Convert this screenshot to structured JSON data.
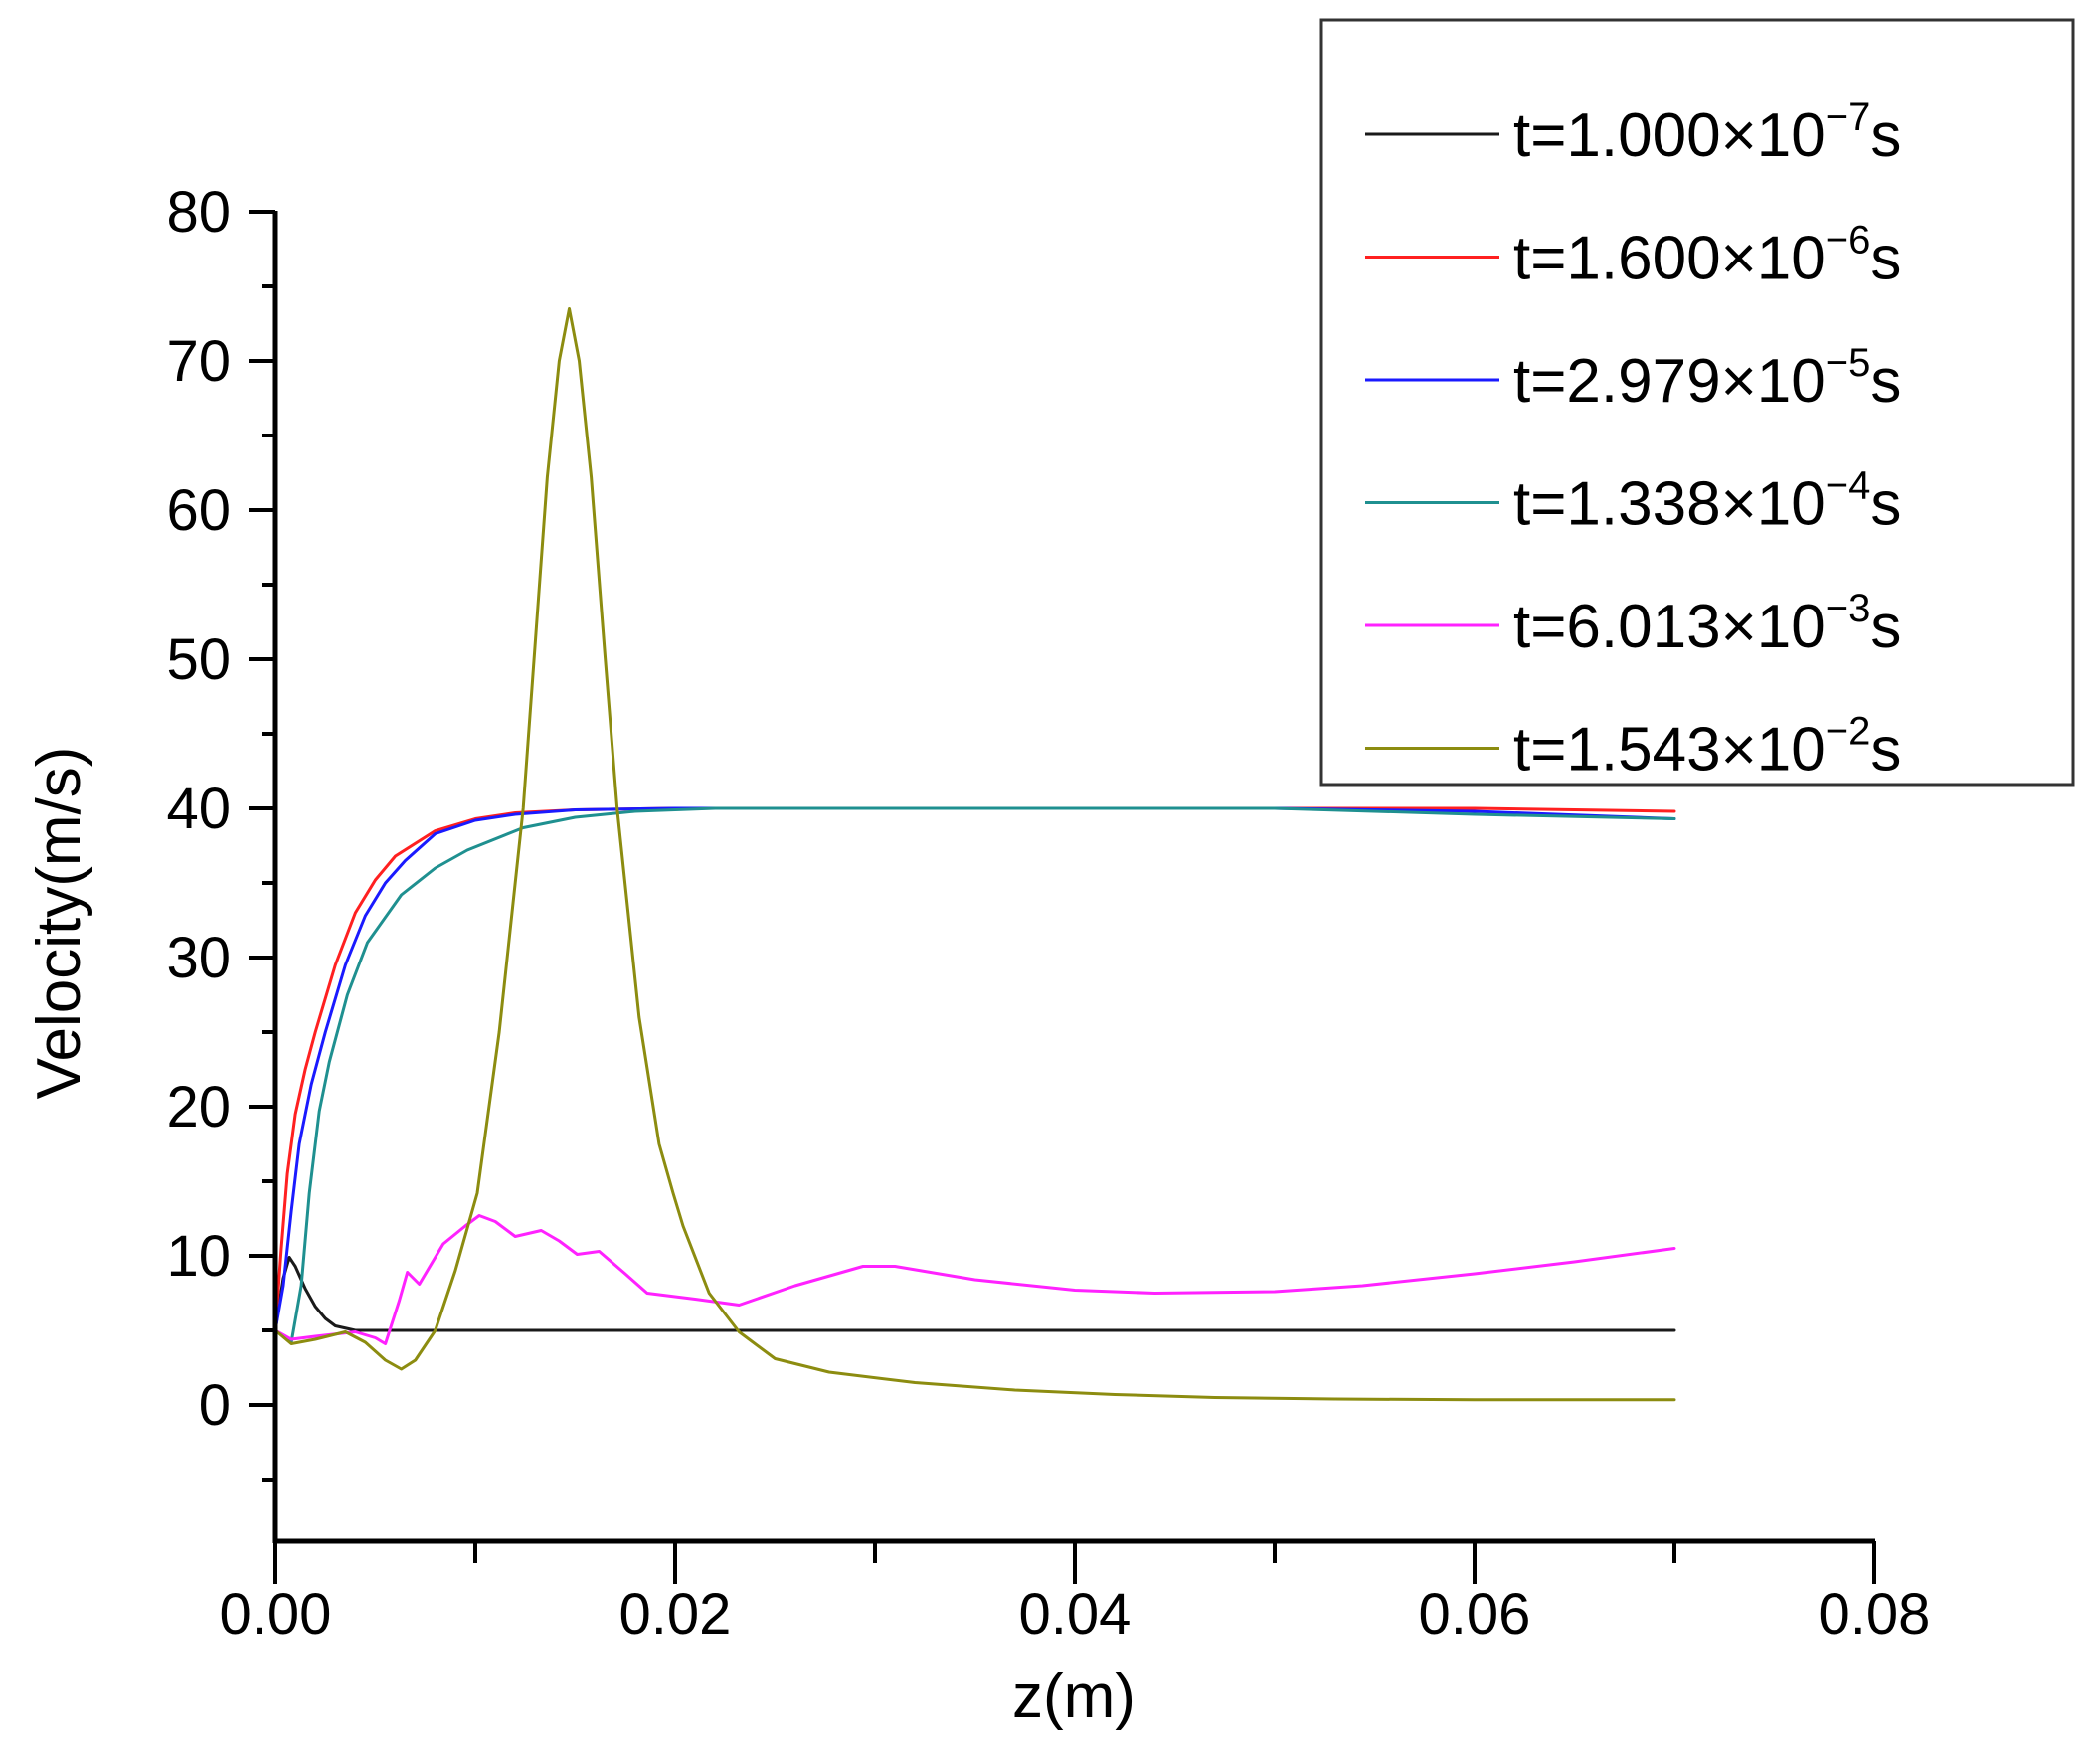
{
  "chart_data": {
    "type": "line",
    "title": "",
    "xlabel": "z(m)",
    "ylabel": "Velocity(m/s)",
    "xlim": [
      0,
      0.08
    ],
    "ylim": [
      -9,
      80
    ],
    "x_ticks": [
      0.0,
      0.02,
      0.04,
      0.06,
      0.08
    ],
    "x_tick_labels": [
      "0.00",
      "0.02",
      "0.04",
      "0.06",
      "0.08"
    ],
    "x_minor_ticks": [
      0.01,
      0.03,
      0.05,
      0.07
    ],
    "y_ticks": [
      0,
      10,
      20,
      30,
      40,
      50,
      60,
      70,
      80
    ],
    "y_tick_labels": [
      "0",
      "10",
      "20",
      "30",
      "40",
      "50",
      "60",
      "70",
      "80"
    ],
    "y_minor_ticks": [
      -5,
      5,
      15,
      25,
      35,
      45,
      55,
      65,
      75
    ],
    "grid": false,
    "legend_position": "upper right (outside plot area, top)",
    "series": [
      {
        "name": "t=1.000×10⁻⁷s",
        "label_main": "t=1.000×10",
        "label_exp": "−7",
        "label_unit": "s",
        "color": "#1a1a1a",
        "x": [
          0.0,
          0.0004,
          0.0007,
          0.001,
          0.0015,
          0.002,
          0.0025,
          0.003,
          0.004,
          0.006,
          0.01,
          0.02,
          0.03,
          0.04,
          0.05,
          0.06,
          0.07
        ],
        "y": [
          5.0,
          8.5,
          9.9,
          9.3,
          7.8,
          6.6,
          5.8,
          5.3,
          5.0,
          5.0,
          5.0,
          5.0,
          5.0,
          5.0,
          5.0,
          5.0,
          5.0
        ]
      },
      {
        "name": "t=1.600×10⁻⁶s",
        "label_main": "t=1.600×10",
        "label_exp": "−6",
        "label_unit": "s",
        "color": "#ff2020",
        "x": [
          0.0,
          0.0003,
          0.0006,
          0.001,
          0.0015,
          0.002,
          0.003,
          0.004,
          0.005,
          0.006,
          0.008,
          0.01,
          0.012,
          0.015,
          0.02,
          0.03,
          0.04,
          0.05,
          0.06,
          0.07
        ],
        "y": [
          5.0,
          10.5,
          15.5,
          19.5,
          22.5,
          25.0,
          29.5,
          33.0,
          35.2,
          36.8,
          38.5,
          39.3,
          39.7,
          39.9,
          40.0,
          40.0,
          40.0,
          40.0,
          40.0,
          39.8
        ]
      },
      {
        "name": "t=2.979×10⁻⁵s",
        "label_main": "t=2.979×10",
        "label_exp": "−5",
        "label_unit": "s",
        "color": "#1a1aff",
        "x": [
          0.0,
          0.0004,
          0.0008,
          0.0012,
          0.0018,
          0.0025,
          0.0035,
          0.0045,
          0.0055,
          0.0065,
          0.008,
          0.01,
          0.012,
          0.015,
          0.02,
          0.03,
          0.04,
          0.05,
          0.06,
          0.07
        ],
        "y": [
          5.0,
          8.0,
          13.0,
          17.5,
          21.5,
          25.0,
          29.5,
          32.8,
          35.0,
          36.5,
          38.3,
          39.2,
          39.6,
          39.9,
          40.0,
          40.0,
          40.0,
          40.0,
          39.8,
          39.3
        ]
      },
      {
        "name": "t=1.338×10⁻⁴s",
        "label_main": "t=1.338×10",
        "label_exp": "−4",
        "label_unit": "s",
        "color": "#1f9090",
        "x": [
          0.0,
          0.0008,
          0.0013,
          0.0017,
          0.0022,
          0.0027,
          0.0036,
          0.0046,
          0.0063,
          0.008,
          0.0096,
          0.0124,
          0.015,
          0.018,
          0.022,
          0.03,
          0.04,
          0.05,
          0.06,
          0.07
        ],
        "y": [
          5.0,
          4.2,
          8.0,
          14.2,
          19.7,
          23.0,
          27.5,
          31.0,
          34.2,
          36.0,
          37.2,
          38.7,
          39.4,
          39.8,
          40.0,
          40.0,
          40.0,
          40.0,
          39.6,
          39.3
        ]
      },
      {
        "name": "t=6.013×10⁻³s",
        "label_main": "t=6.013×10",
        "label_exp": "−3",
        "label_unit": "s",
        "color": "#ff22ff",
        "x": [
          0.0,
          0.0008,
          0.002,
          0.004,
          0.005,
          0.0055,
          0.0062,
          0.0066,
          0.0072,
          0.0084,
          0.0095,
          0.0102,
          0.011,
          0.012,
          0.0133,
          0.0142,
          0.0151,
          0.0162,
          0.0175,
          0.0186,
          0.021,
          0.0232,
          0.026,
          0.0294,
          0.031,
          0.035,
          0.04,
          0.044,
          0.05,
          0.0544,
          0.06,
          0.065,
          0.07
        ],
        "y": [
          5.0,
          4.4,
          4.6,
          4.9,
          4.5,
          4.1,
          7.0,
          8.9,
          8.1,
          10.8,
          12.0,
          12.7,
          12.3,
          11.3,
          11.7,
          11.0,
          10.1,
          10.3,
          8.8,
          7.5,
          7.1,
          6.7,
          8.0,
          9.3,
          9.3,
          8.4,
          7.7,
          7.5,
          7.6,
          8.0,
          8.8,
          9.6,
          10.5
        ]
      },
      {
        "name": "t=1.543×10⁻²s",
        "label_main": "t=1.543×10",
        "label_exp": "−2",
        "label_unit": "s",
        "color": "#8c8c10",
        "x": [
          0.0,
          0.0008,
          0.002,
          0.0035,
          0.0045,
          0.0055,
          0.0063,
          0.007,
          0.008,
          0.009,
          0.0101,
          0.0112,
          0.0124,
          0.0136,
          0.0142,
          0.0147,
          0.0152,
          0.0158,
          0.0165,
          0.0171,
          0.0182,
          0.0192,
          0.0199,
          0.0204,
          0.0217,
          0.0232,
          0.025,
          0.0277,
          0.032,
          0.037,
          0.042,
          0.047,
          0.053,
          0.06,
          0.07
        ],
        "y": [
          5.0,
          4.1,
          4.4,
          4.9,
          4.2,
          3.0,
          2.4,
          3.0,
          5.0,
          9.0,
          14.2,
          25.0,
          40.0,
          62.2,
          70.0,
          73.5,
          70.0,
          62.2,
          50.0,
          40.0,
          26.0,
          17.5,
          14.2,
          12.0,
          7.5,
          4.9,
          3.1,
          2.2,
          1.5,
          1.0,
          0.7,
          0.5,
          0.4,
          0.35,
          0.35
        ]
      }
    ]
  },
  "legend": {
    "items": [
      {
        "main": "t=1.000×10",
        "exp": "−7",
        "unit": "s",
        "color": "#1a1a1a"
      },
      {
        "main": "t=1.600×10",
        "exp": "−6",
        "unit": "s",
        "color": "#ff2020"
      },
      {
        "main": "t=2.979×10",
        "exp": "−5",
        "unit": "s",
        "color": "#1a1aff"
      },
      {
        "main": "t=1.338×10",
        "exp": "−4",
        "unit": "s",
        "color": "#1f9090"
      },
      {
        "main": "t=6.013×10",
        "exp": "−3",
        "unit": "s",
        "color": "#ff22ff"
      },
      {
        "main": "t=1.543×10",
        "exp": "−2",
        "unit": "s",
        "color": "#8c8c10"
      }
    ]
  },
  "axes": {
    "xlabel": "z(m)",
    "ylabel": "Velocity(m/s)"
  }
}
